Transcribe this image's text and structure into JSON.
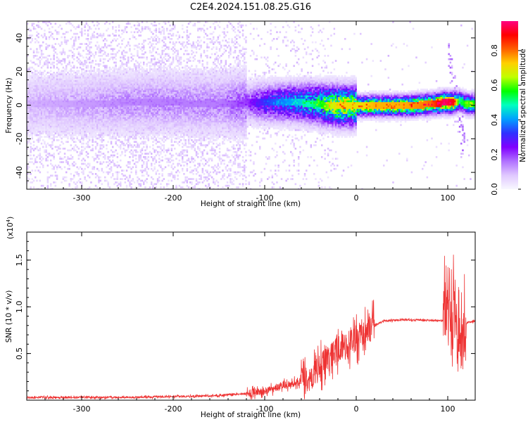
{
  "title": "C2E4.2024.151.08.25.G16",
  "chart_data": [
    {
      "type": "heatmap",
      "xlabel": "Height of straight line (km)",
      "ylabel": "Frequency (Hz)",
      "xlim": [
        -360,
        130
      ],
      "ylim": [
        -50,
        50
      ],
      "xticks": [
        -300,
        -200,
        -100,
        0,
        100
      ],
      "yticks": [
        -40,
        -20,
        0,
        20,
        40
      ],
      "colorbar": {
        "label": "Normalized spectral amplitude",
        "range": [
          0.0,
          0.97
        ],
        "ticks": [
          0.0,
          0.2,
          0.4,
          0.6,
          0.8
        ],
        "colormap": [
          "#f8f8ff",
          "#e0c8ff",
          "#b070ff",
          "#8000ff",
          "#3030ff",
          "#00a0ff",
          "#00ffc0",
          "#00ff00",
          "#c0ff00",
          "#ffd000",
          "#ff6000",
          "#ff0000",
          "#ff0080"
        ]
      },
      "dominant_band": {
        "x": [
          -360,
          -300,
          -250,
          -200,
          -150,
          -120,
          -100,
          -80,
          -60,
          -40,
          -20,
          0,
          20,
          50,
          80,
          95,
          105,
          112,
          120,
          130
        ],
        "center_hz": [
          1,
          1,
          2,
          2,
          1,
          2,
          2,
          2,
          2,
          1,
          0,
          0,
          0,
          0,
          1,
          2,
          2,
          3,
          1,
          1
        ],
        "amplitude": [
          0.1,
          0.12,
          0.14,
          0.15,
          0.15,
          0.2,
          0.32,
          0.38,
          0.45,
          0.55,
          0.72,
          0.7,
          0.75,
          0.75,
          0.8,
          0.95,
          0.9,
          0.5,
          0.6,
          0.55
        ]
      }
    },
    {
      "type": "line",
      "xlabel": "Height of straight line (km)",
      "ylabel": "SNR (10 * v/v)",
      "y_multiplier": "(x10",
      "y_multiplier_exp": "4",
      "y_multiplier_close": ")",
      "xlim": [
        -360,
        130
      ],
      "ylim": [
        0,
        1.8
      ],
      "xticks": [
        -300,
        -200,
        -100,
        0,
        100
      ],
      "yticks": [
        0.5,
        1.0,
        1.5
      ],
      "series": [
        {
          "color": "#ee3333",
          "x": [
            -360,
            -300,
            -250,
            -200,
            -180,
            -150,
            -120,
            -100,
            -80,
            -60,
            -50,
            -40,
            -30,
            -20,
            -10,
            0,
            10,
            20,
            30,
            50,
            70,
            90,
            100,
            105,
            108,
            112,
            118,
            125,
            130
          ],
          "y": [
            0.03,
            0.03,
            0.03,
            0.04,
            0.04,
            0.05,
            0.07,
            0.1,
            0.15,
            0.2,
            0.22,
            0.35,
            0.45,
            0.55,
            0.6,
            0.65,
            0.72,
            0.8,
            0.85,
            0.86,
            0.86,
            0.85,
            0.84,
            0.75,
            1.05,
            0.5,
            0.82,
            0.84,
            0.84
          ]
        }
      ]
    }
  ]
}
